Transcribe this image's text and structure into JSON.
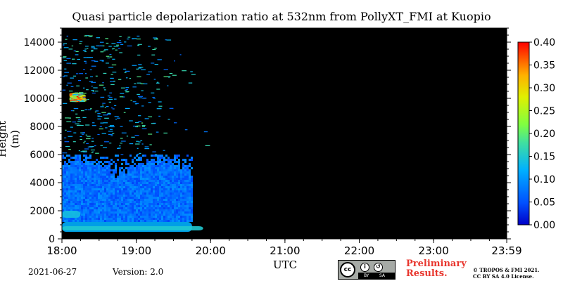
{
  "chart_data": {
    "type": "heatmap",
    "title": "Quasi particle depolarization ratio at 532nm from PollyXT_FMI at Kuopio",
    "xlabel": "UTC",
    "ylabel": "Height (m)",
    "x_tick_labels": [
      "18:00",
      "19:00",
      "20:00",
      "21:00",
      "22:00",
      "23:00",
      "23:59"
    ],
    "x_range_hours": [
      18.0,
      23.983
    ],
    "y_ticks": [
      0,
      2000,
      4000,
      6000,
      8000,
      10000,
      12000,
      14000
    ],
    "y_tick_labels": [
      "0",
      "2000",
      "4000",
      "6000",
      "8000",
      "10000",
      "12000",
      "14000"
    ],
    "ylim": [
      0,
      15000
    ],
    "colorbar": {
      "ticks": [
        0.0,
        0.05,
        0.1,
        0.15,
        0.2,
        0.25,
        0.3,
        0.35,
        0.4
      ],
      "tick_labels": [
        "0.00",
        "0.05",
        "0.10",
        "0.15",
        "0.20",
        "0.25",
        "0.30",
        "0.35",
        "0.40"
      ],
      "range": [
        0.0,
        0.4
      ],
      "colormap": "jet",
      "position": "right"
    },
    "background_color": "#000000",
    "regions": [
      {
        "t_start": 18.0,
        "t_end": 19.75,
        "h_start": 500,
        "h_end": 1200,
        "value": 0.12
      },
      {
        "t_start": 18.0,
        "t_end": 19.9,
        "h_start": 600,
        "h_end": 900,
        "value": 0.15
      },
      {
        "t_start": 18.0,
        "t_end": 19.75,
        "h_start": 1200,
        "h_end": 6000,
        "value": 0.07
      },
      {
        "t_start": 18.0,
        "t_end": 18.25,
        "h_start": 1500,
        "h_end": 2000,
        "value": 0.14
      },
      {
        "t_start": 18.1,
        "t_end": 18.3,
        "h_start": 9800,
        "h_end": 10400,
        "value": 0.33
      },
      {
        "t_start": 18.0,
        "t_end": 20.0,
        "h_start": 6000,
        "h_end": 14500,
        "value": 0.15
      }
    ]
  },
  "footer": {
    "date": "2021-06-27",
    "version": "Version: 2.0",
    "preliminary_line1": "Preliminary",
    "preliminary_line2": "Results.",
    "copyright_line1": "© TROPOS & FMI 2021.",
    "copyright_line2": "CC BY SA 4.0 License.",
    "license_badge": {
      "cc": "cc",
      "by": "BY",
      "sa": "SA"
    }
  }
}
